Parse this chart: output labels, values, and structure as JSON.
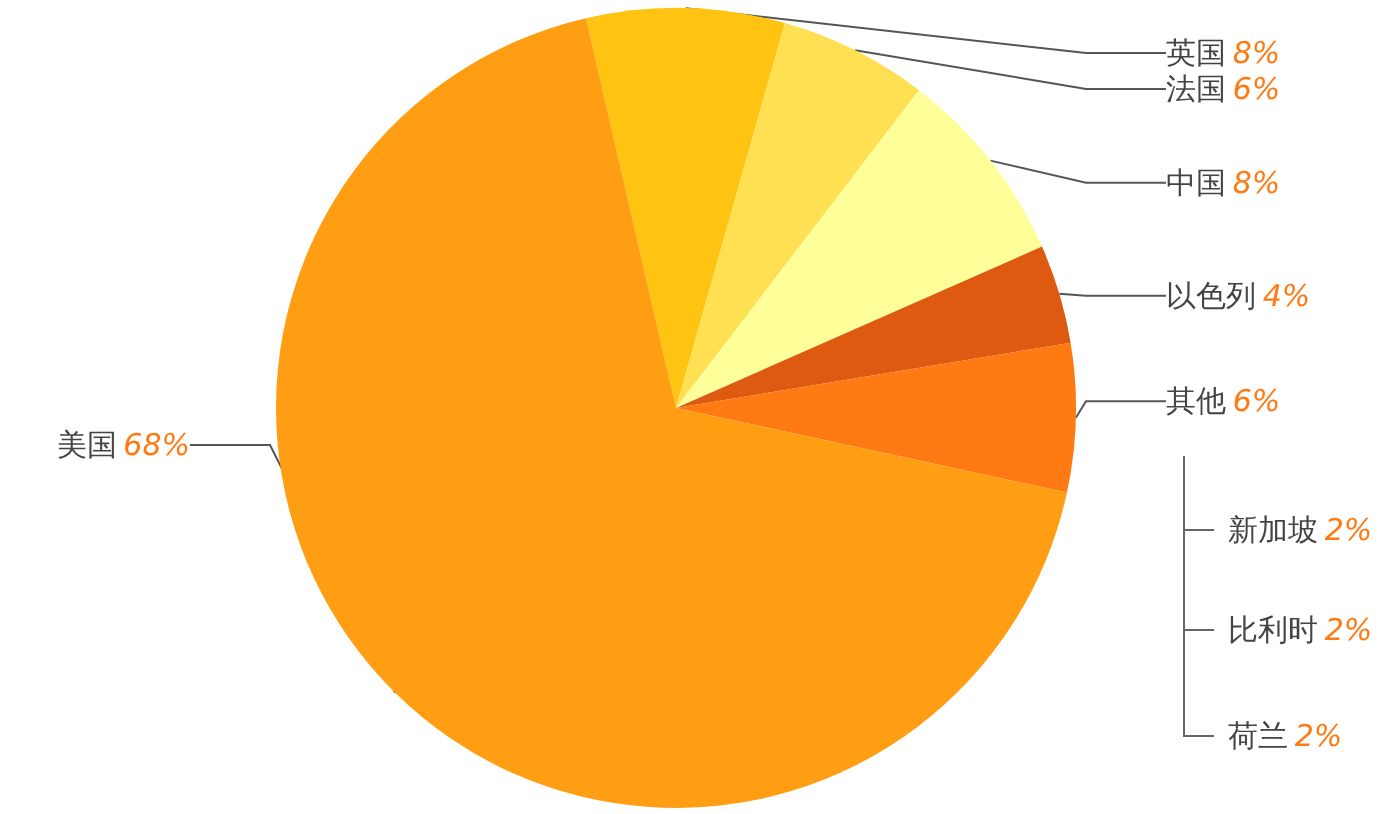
{
  "chart_data": {
    "type": "pie",
    "categories": [
      "英国",
      "法国",
      "中国",
      "以色列",
      "其他",
      "美国"
    ],
    "values": [
      8,
      6,
      8,
      4,
      6,
      68
    ],
    "colors": [
      "#ffc312",
      "#ffe052",
      "#ffff99",
      "#dd5a10",
      "#ff7a12",
      "#ff9e12"
    ],
    "value_labels": [
      "8%",
      "6%",
      "8%",
      "4%",
      "6%",
      "68%"
    ],
    "annotations": [
      "新加坡 2%",
      "比利时 2%",
      "荷兰 2%"
    ]
  }
}
